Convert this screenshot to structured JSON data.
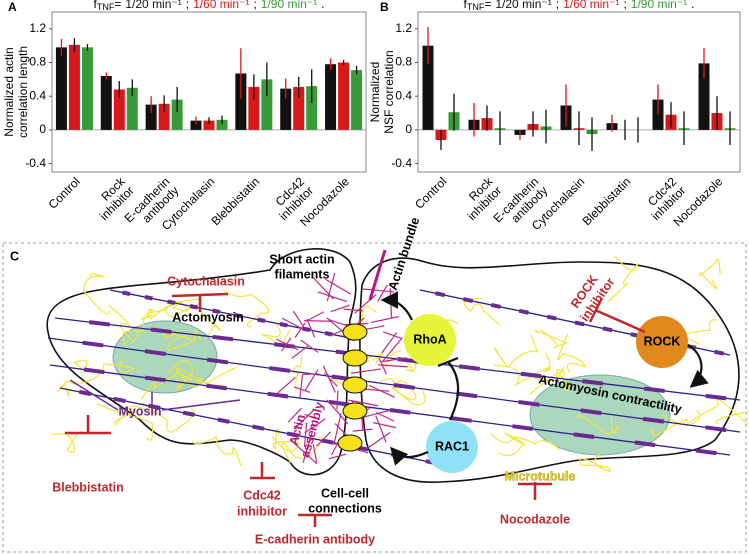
{
  "chart_data": [
    {
      "type": "bar",
      "panel": "A",
      "title_symbol": "f",
      "title_subscript": "TNF",
      "title_equals": "=",
      "title_separator": ";",
      "title_end": ".",
      "ylabel": [
        "Normalized actin",
        "correlation length"
      ],
      "categories": [
        [
          "Control"
        ],
        [
          "Rock",
          "inhibitor"
        ],
        [
          "E-cadherin",
          "antibody"
        ],
        [
          "Cytochalasin"
        ],
        [
          "Blebbistatin"
        ],
        [
          "Cdc42",
          "inhibitor"
        ],
        [
          "Nocodazole"
        ]
      ],
      "series": [
        {
          "name": "1/20 min⁻¹",
          "color": "#111111",
          "error_color": "#d7191c",
          "values": [
            0.98,
            0.64,
            0.3,
            0.11,
            0.67,
            0.49,
            0.78
          ],
          "errors": [
            0.1,
            0.04,
            0.1,
            0.05,
            0.3,
            0.12,
            0.07
          ]
        },
        {
          "name": "1/60 min⁻¹",
          "color": "#d7191c",
          "error_color": "#111111",
          "values": [
            1.01,
            0.48,
            0.31,
            0.11,
            0.51,
            0.51,
            0.8
          ],
          "errors": [
            0.08,
            0.1,
            0.1,
            0.04,
            0.15,
            0.12,
            0.03
          ]
        },
        {
          "name": "1/90 min⁻¹",
          "color": "#3a9a3a",
          "error_color": "#111111",
          "values": [
            0.98,
            0.5,
            0.36,
            0.12,
            0.6,
            0.52,
            0.71
          ],
          "errors": [
            0.04,
            0.1,
            0.15,
            0.05,
            0.2,
            0.2,
            0.05
          ]
        }
      ],
      "ylim": [
        -0.5,
        1.4
      ],
      "yticks": [
        -0.4,
        0,
        0.4,
        0.8,
        1.2
      ],
      "zero_line": true
    },
    {
      "type": "bar",
      "panel": "B",
      "title_symbol": "f",
      "title_subscript": "TNF",
      "title_equals": "=",
      "title_separator": ";",
      "title_end": ".",
      "ylabel": [
        "Normalized",
        "NSF correlation"
      ],
      "categories": [
        [
          "Control"
        ],
        [
          "Rock",
          "inhibitor"
        ],
        [
          "E-cadherin",
          "antibody"
        ],
        [
          "Cytochalasin"
        ],
        [
          "Blebbistatin"
        ],
        [
          "Cdc42",
          "inhibitor"
        ],
        [
          "Nocodazole"
        ]
      ],
      "series": [
        {
          "name": "1/20 min⁻¹",
          "color": "#111111",
          "error_color": "#d7191c",
          "values": [
            1.0,
            0.12,
            -0.06,
            0.29,
            0.08,
            0.36,
            0.79
          ],
          "errors": [
            0.22,
            0.2,
            0.06,
            0.25,
            0.1,
            0.18,
            0.18
          ]
        },
        {
          "name": "1/60 min⁻¹",
          "color": "#d7191c",
          "error_color": "#111111",
          "values": [
            -0.12,
            0.14,
            0.07,
            0.02,
            0.0,
            0.18,
            0.2
          ],
          "errors": [
            0.12,
            0.15,
            0.15,
            0.2,
            0.12,
            0.15,
            0.2
          ]
        },
        {
          "name": "1/90 min⁻¹",
          "color": "#3a9a3a",
          "error_color": "#111111",
          "values": [
            0.21,
            0.02,
            0.04,
            -0.05,
            0.0,
            0.02,
            0.02
          ],
          "errors": [
            0.22,
            0.2,
            0.2,
            0.2,
            0.15,
            0.2,
            0.2
          ]
        }
      ],
      "ylim": [
        -0.5,
        1.4
      ],
      "yticks": [
        -0.4,
        0,
        0.4,
        0.8,
        1.2
      ],
      "zero_line": true
    }
  ],
  "diagram": {
    "panel": "C",
    "labels": {
      "cytochalasin": "Cytochalasin",
      "actomyosin": "Actomyosin",
      "short_actin": [
        "Short actin",
        "filaments"
      ],
      "actin_bundle": "Actin bundle",
      "rhoa": "RhoA",
      "rock_inhibitor": [
        "ROCK",
        "inhibitor"
      ],
      "rock": "ROCK",
      "contractility": "Actomyosin contractility",
      "myosin": "Myosin",
      "actin_assembly": [
        "Actin",
        "assembly"
      ],
      "rac1": "RAC1",
      "blebbistatin": "Blebbistatin",
      "cdc42_inhibitor": [
        "Cdc42",
        "inhibitor"
      ],
      "cell_connections": [
        "Cell-cell",
        "connections"
      ],
      "ecadherin_antibody": "E-cadherin antibody",
      "microtubule": "Microtubule",
      "nocodazole": "Nocodazole"
    }
  }
}
